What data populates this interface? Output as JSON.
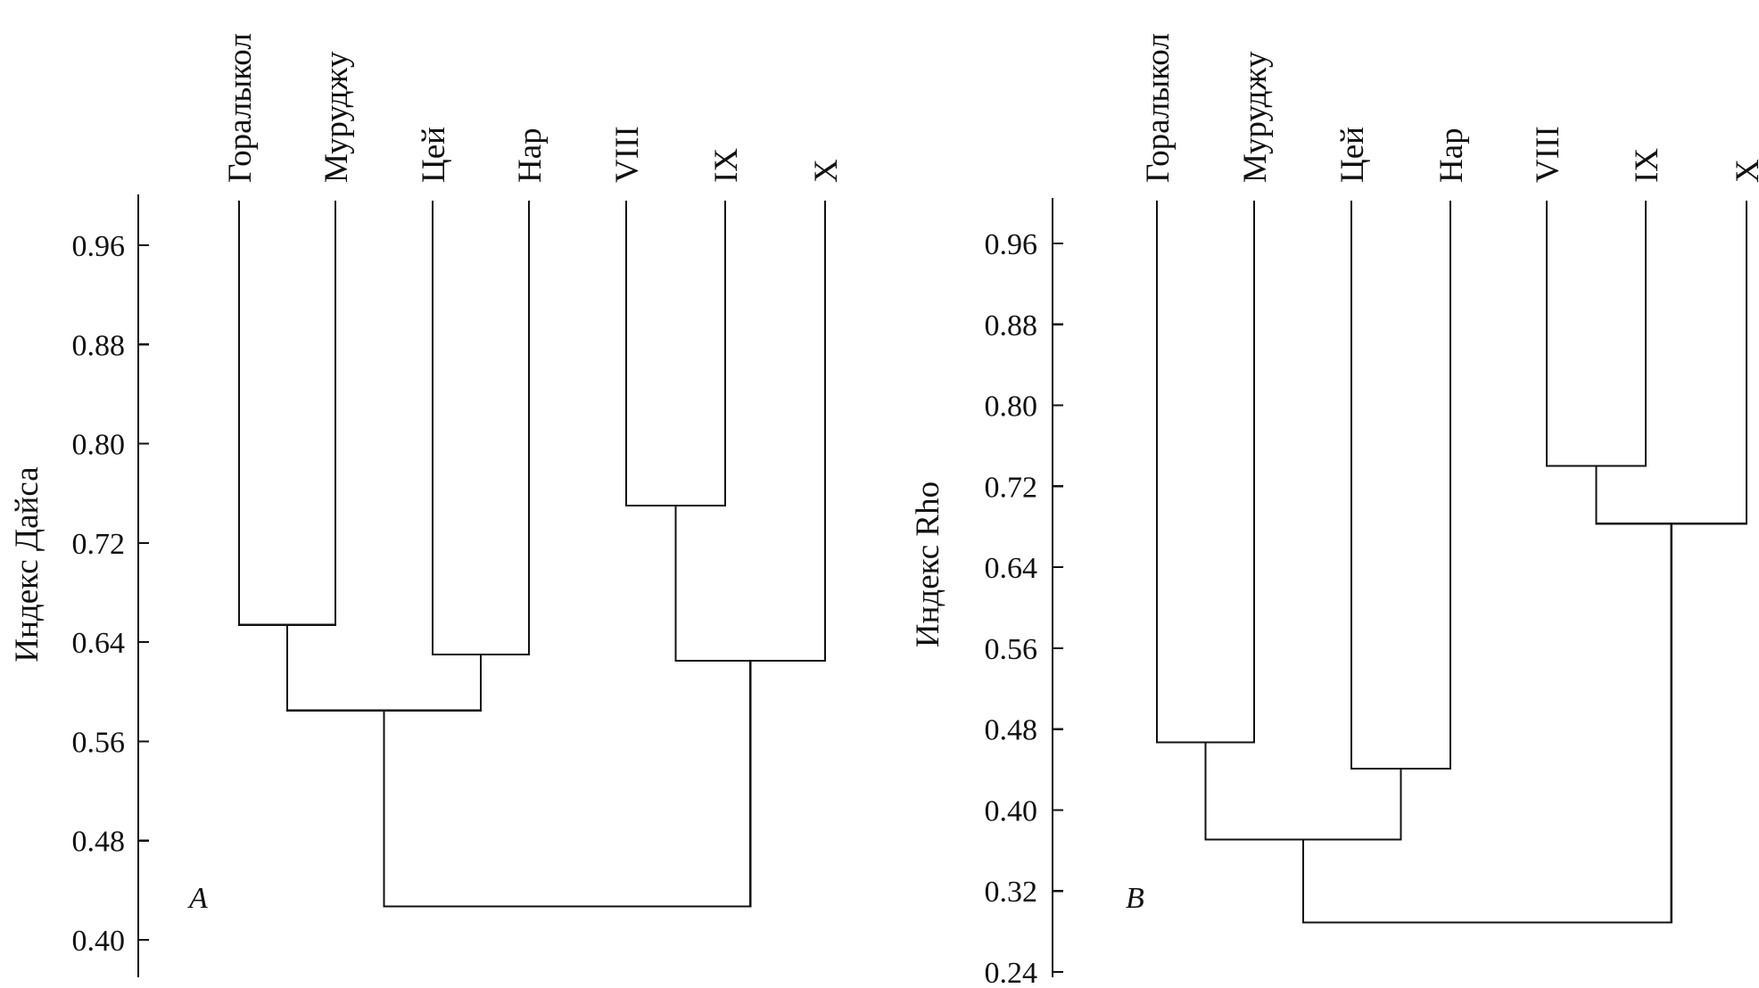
{
  "chart_data": [
    {
      "type": "dendrogram",
      "panel_label": "A",
      "ylabel": "Индекс Дайса",
      "ylim": [
        0.4,
        0.99
      ],
      "yticks": [
        "0.96",
        "0.88",
        "0.80",
        "0.72",
        "0.64",
        "0.56",
        "0.48",
        "0.40"
      ],
      "leaves": [
        "Горалыкол",
        "Муруджу",
        "Цей",
        "Нар",
        "VIII",
        "IX",
        "X"
      ],
      "merges": [
        {
          "left": "Горалыкол",
          "right": "Муруджу",
          "similarity": 0.654
        },
        {
          "left": "Цей",
          "right": "Нар",
          "similarity": 0.63
        },
        {
          "left": "VIII",
          "right": "IX",
          "similarity": 0.75
        },
        {
          "left": "VIII+IX",
          "right": "X",
          "similarity": 0.625
        },
        {
          "left": "Горалыкол+Муруджу",
          "right": "Цей+Нар",
          "similarity": 0.585
        },
        {
          "left": "Горалыкол+Муруджу+Цей+Нар",
          "right": "VIII+IX+X",
          "similarity": 0.427
        }
      ]
    },
    {
      "type": "dendrogram",
      "panel_label": "B",
      "ylabel": "Индекс Rho",
      "ylim": [
        0.24,
        1.0
      ],
      "yticks": [
        "0.96",
        "0.88",
        "0.80",
        "0.72",
        "0.64",
        "0.56",
        "0.48",
        "0.40",
        "0.32",
        "0.24"
      ],
      "leaves": [
        "Горалыкол",
        "Муруджу",
        "Цей",
        "Нар",
        "VIII",
        "IX",
        "X"
      ],
      "merges": [
        {
          "left": "Горалыкол",
          "right": "Муруджу",
          "similarity": 0.467
        },
        {
          "left": "Цей",
          "right": "Нар",
          "similarity": 0.441
        },
        {
          "left": "VIII",
          "right": "IX",
          "similarity": 0.74
        },
        {
          "left": "VIII+IX",
          "right": "X",
          "similarity": 0.683
        },
        {
          "left": "Горалыкол+Муруджу",
          "right": "Цей+Нар",
          "similarity": 0.371
        },
        {
          "left": "Горалыкол+Муруджу+Цей+Нар",
          "right": "VIII+IX+X",
          "similarity": 0.289
        }
      ]
    }
  ]
}
